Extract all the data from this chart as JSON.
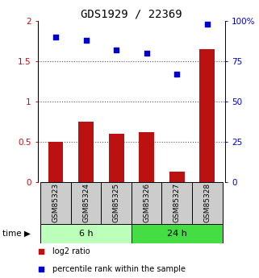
{
  "title": "GDS1929 / 22369",
  "samples": [
    "GSM85323",
    "GSM85324",
    "GSM85325",
    "GSM85326",
    "GSM85327",
    "GSM85328"
  ],
  "log2_ratio": [
    0.5,
    0.75,
    0.6,
    0.62,
    0.13,
    1.65
  ],
  "percentile_rank": [
    90,
    88,
    82,
    80,
    67,
    98
  ],
  "bar_color": "#bb1111",
  "dot_color": "#0000cc",
  "ylim_left": [
    0,
    2
  ],
  "ylim_right": [
    0,
    100
  ],
  "yticks_left": [
    0,
    0.5,
    1.0,
    1.5,
    2.0
  ],
  "ytick_labels_left": [
    "0",
    "0.5",
    "1",
    "1.5",
    "2"
  ],
  "yticks_right": [
    0,
    25,
    50,
    75,
    100
  ],
  "ytick_labels_right": [
    "0",
    "25",
    "50",
    "75",
    "100%"
  ],
  "group1_label": "6 h",
  "group2_label": "24 h",
  "group1_indices": [
    0,
    1,
    2
  ],
  "group2_indices": [
    3,
    4,
    5
  ],
  "group1_color": "#bbffbb",
  "group2_color": "#44dd44",
  "time_label": "time",
  "legend1": "log2 ratio",
  "legend2": "percentile rank within the sample",
  "sample_box_color": "#cccccc",
  "dotted_line_color": "#555555",
  "title_fontsize": 10,
  "tick_label_fontsize": 7.5,
  "sample_fontsize": 6.5,
  "legend_fontsize": 7
}
